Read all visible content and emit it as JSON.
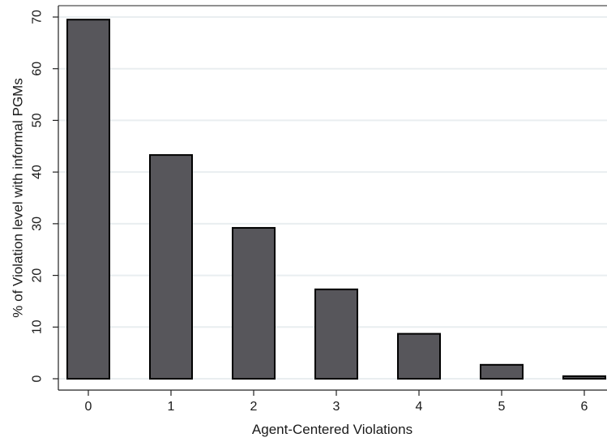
{
  "chart_data": {
    "type": "bar",
    "title": "",
    "xlabel": "Agent-Centered Violations",
    "ylabel": "% of Violation level with informal PGMs",
    "categories": [
      "0",
      "1",
      "2",
      "3",
      "4",
      "5",
      "6"
    ],
    "values": [
      69.5,
      43.3,
      29.2,
      17.3,
      8.7,
      2.7,
      0.5
    ],
    "ylim": [
      0,
      70
    ],
    "yticks": [
      0,
      10,
      20,
      30,
      40,
      50,
      60,
      70
    ],
    "grid": "horizontal",
    "colors": {
      "bar_fill": "#57565b",
      "bar_stroke": "#000000",
      "grid": "#e9eef0",
      "axis": "#222222"
    }
  }
}
